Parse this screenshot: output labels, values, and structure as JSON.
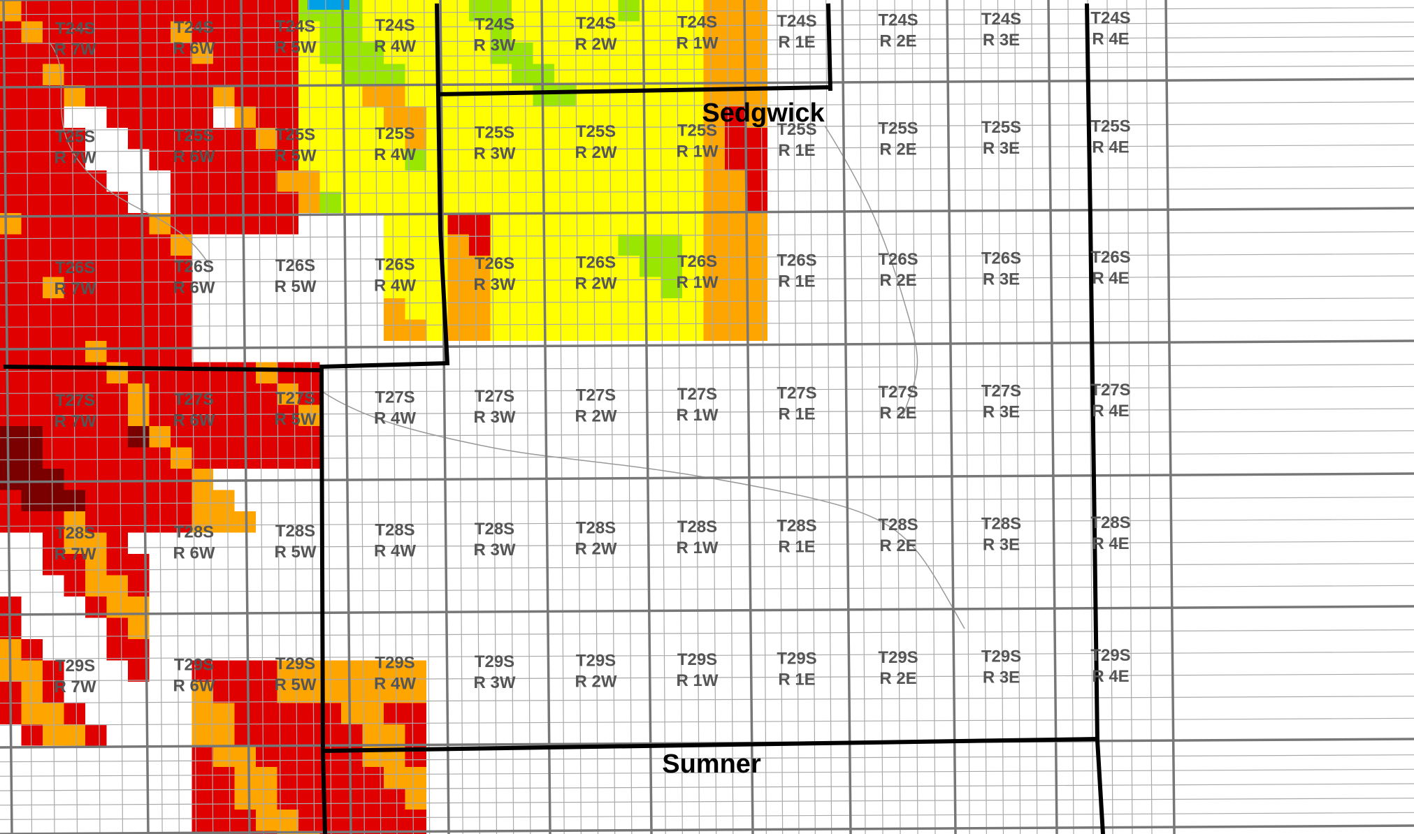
{
  "map": {
    "county_labels": {
      "north": "Sedgwick",
      "south": "Sumner"
    },
    "township_rows": [
      "T24S",
      "T25S",
      "T26S",
      "T27S",
      "T28S",
      "T29S"
    ],
    "range_columns": [
      "R 7W",
      "R 6W",
      "R 5W",
      "R 4W",
      "R 3W",
      "R 2W",
      "R 1W",
      "R 1E",
      "R 2E",
      "R 3E",
      "R 4E"
    ],
    "colors": {
      "dark_red": "#7a0000",
      "red": "#e00000",
      "orange": "#ffa500",
      "yellow": "#ffff00",
      "green": "#99e600",
      "blue": "#00a0e6",
      "township_line": "#777777",
      "section_line": "#aaaaaa",
      "county_line": "#000000",
      "label_text": "#555555"
    }
  }
}
